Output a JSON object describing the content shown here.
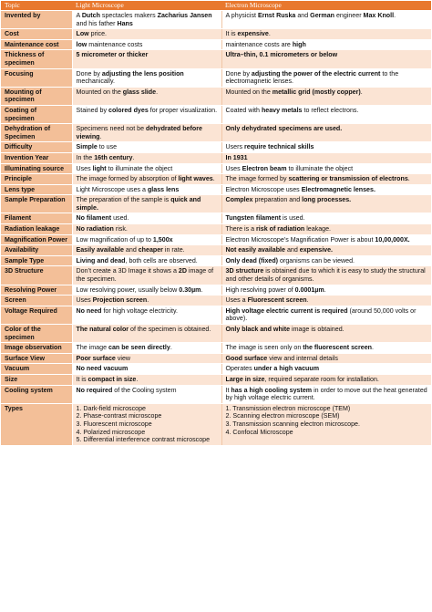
{
  "header": {
    "topic": "Topic",
    "light": "Light Microscope",
    "electron": "Electron Microscope"
  },
  "rows": [
    {
      "topic": "Invented by",
      "light": [
        [
          "A "
        ],
        [
          "Dutch",
          "b"
        ],
        [
          " spectacles makers "
        ],
        [
          "Zacharius Jansen",
          "b"
        ],
        [
          " and his father "
        ],
        [
          "Hans",
          "b"
        ]
      ],
      "electron": [
        [
          "A physicist "
        ],
        [
          "Ernst Ruska",
          "b"
        ],
        [
          " and "
        ],
        [
          "German",
          "b"
        ],
        [
          " engineer "
        ],
        [
          "Max Knoll",
          "b"
        ],
        [
          "."
        ]
      ]
    },
    {
      "topic": "Cost",
      "light": [
        [
          "Low",
          "b"
        ],
        [
          " price."
        ]
      ],
      "electron": [
        [
          "It is "
        ],
        [
          "expensive",
          "b"
        ],
        [
          "."
        ]
      ]
    },
    {
      "topic": "Maintenance cost",
      "light": [
        [
          "low",
          "b"
        ],
        [
          " maintenance costs"
        ]
      ],
      "electron": [
        [
          "maintenance costs are "
        ],
        [
          "high",
          "b"
        ]
      ]
    },
    {
      "topic": "Thickness of specimen",
      "light": [
        [
          "5 micrometer or thicker",
          "b"
        ]
      ],
      "electron": [
        [
          "Ultra–thin, 0.1 micrometers or below",
          "b"
        ]
      ]
    },
    {
      "topic": "Focusing",
      "light": [
        [
          "Done by "
        ],
        [
          "adjusting the lens position",
          "b"
        ],
        [
          " mechanically."
        ]
      ],
      "electron": [
        [
          "Done by "
        ],
        [
          "adjusting the power of the electric current",
          "b"
        ],
        [
          " to the electromagnetic lenses."
        ]
      ]
    },
    {
      "topic": "Mounting of specimen",
      "light": [
        [
          "Mounted on the "
        ],
        [
          "glass slide",
          "b"
        ],
        [
          "."
        ]
      ],
      "electron": [
        [
          "Mounted on the "
        ],
        [
          "metallic grid (mostly copper)",
          "b"
        ],
        [
          "."
        ]
      ]
    },
    {
      "topic": "Coating of specimen",
      "light": [
        [
          "Stained by "
        ],
        [
          "colored dyes",
          "b"
        ],
        [
          " for proper visualization."
        ]
      ],
      "electron": [
        [
          "Coated with "
        ],
        [
          "heavy metals",
          "b"
        ],
        [
          " to reflect electrons."
        ]
      ]
    },
    {
      "topic": "Dehydration of Specimen",
      "light": [
        [
          "Specimens need not be "
        ],
        [
          "dehydrated before viewing",
          "b"
        ],
        [
          "."
        ]
      ],
      "electron": [
        [
          "Only dehydrated specimens are used.",
          "b"
        ]
      ]
    },
    {
      "topic": "Difficulty",
      "light": [
        [
          "Simple",
          "b"
        ],
        [
          " to use"
        ]
      ],
      "electron": [
        [
          "Users "
        ],
        [
          "require technical skills",
          "b"
        ]
      ]
    },
    {
      "topic": "Invention Year",
      "light": [
        [
          "In the "
        ],
        [
          "16th century",
          "b"
        ],
        [
          "."
        ]
      ],
      "electron": [
        [
          "In 1931",
          "b"
        ]
      ]
    },
    {
      "topic": "Illuminating source",
      "light": [
        [
          "Uses "
        ],
        [
          "light",
          "b"
        ],
        [
          " to illuminate the object"
        ]
      ],
      "electron": [
        [
          "Uses "
        ],
        [
          "Electron beam",
          "b"
        ],
        [
          " to illuminate the object"
        ]
      ]
    },
    {
      "topic": "Principle",
      "light": [
        [
          "The image formed by absorption of "
        ],
        [
          "light waves",
          "b"
        ],
        [
          "."
        ]
      ],
      "electron": [
        [
          "The image formed by "
        ],
        [
          "scattering or transmission of electrons",
          "b"
        ],
        [
          "."
        ]
      ]
    },
    {
      "topic": "Lens type",
      "light": [
        [
          "Light Microscope uses a "
        ],
        [
          "glass lens",
          "b"
        ]
      ],
      "electron": [
        [
          "Electron Microscope uses "
        ],
        [
          "Electromagnetic lenses.",
          "b"
        ]
      ]
    },
    {
      "topic": "Sample Preparation",
      "light": [
        [
          "The preparation of the sample is "
        ],
        [
          "quick and simple.",
          "b"
        ]
      ],
      "electron": [
        [
          "Complex",
          "b"
        ],
        [
          " preparation and "
        ],
        [
          "long processes.",
          "b"
        ]
      ]
    },
    {
      "topic": "Filament",
      "light": [
        [
          "No filament",
          "b"
        ],
        [
          " used."
        ]
      ],
      "electron": [
        [
          "Tungsten filament",
          "b"
        ],
        [
          " is used."
        ]
      ]
    },
    {
      "topic": "Radiation leakage",
      "light": [
        [
          "No radiation",
          "b"
        ],
        [
          " risk."
        ]
      ],
      "electron": [
        [
          "There is a "
        ],
        [
          "risk of radiation",
          "b"
        ],
        [
          " leakage."
        ]
      ]
    },
    {
      "topic": "Magnification Power",
      "light": [
        [
          "Low magnification of up to "
        ],
        [
          "1,500x",
          "b"
        ]
      ],
      "electron": [
        [
          "Electron Microscope’s Magnification Power is about "
        ],
        [
          "10,00,000X.",
          "b"
        ]
      ]
    },
    {
      "topic": "Availability",
      "light": [
        [
          "Easily available",
          "b"
        ],
        [
          " and "
        ],
        [
          "cheaper",
          "b"
        ],
        [
          " in rate."
        ]
      ],
      "electron": [
        [
          "Not easily available",
          "b"
        ],
        [
          " and "
        ],
        [
          "expensive.",
          "b"
        ]
      ]
    },
    {
      "topic": "Sample Type",
      "light": [
        [
          "Living and dead",
          "b"
        ],
        [
          ", both cells are observed."
        ]
      ],
      "electron": [
        [
          "Only dead (fixed)",
          "b"
        ],
        [
          " organisms can be viewed."
        ]
      ]
    },
    {
      "topic": "3D Structure",
      "light": [
        [
          "Don’t create a 3D Image it shows a "
        ],
        [
          "2D",
          "b"
        ],
        [
          " image of the specimen."
        ]
      ],
      "electron": [
        [
          "3D structure",
          "b"
        ],
        [
          " is obtained due to which it is easy to study the structural and other details of organisms."
        ]
      ]
    },
    {
      "topic": "Resolving Power",
      "light": [
        [
          "Low resolving power, usually below "
        ],
        [
          "0.30µm",
          "b"
        ],
        [
          "."
        ]
      ],
      "electron": [
        [
          "High resolving power of "
        ],
        [
          "0.0001µm",
          "b"
        ],
        [
          "."
        ]
      ]
    },
    {
      "topic": "Screen",
      "light": [
        [
          "Uses "
        ],
        [
          "Projection screen",
          "b"
        ],
        [
          "."
        ]
      ],
      "electron": [
        [
          "Uses a "
        ],
        [
          "Fluorescent screen",
          "b"
        ],
        [
          "."
        ]
      ]
    },
    {
      "topic": "Voltage Required",
      "light": [
        [
          "No need",
          "b"
        ],
        [
          " for high voltage electricity."
        ]
      ],
      "electron": [
        [
          "High voltage electric current is required",
          "b"
        ],
        [
          " (around 50,000 volts or above)."
        ]
      ]
    },
    {
      "topic": "Color of the specimen",
      "light": [
        [
          "The natural color",
          "b"
        ],
        [
          " of the specimen is obtained."
        ]
      ],
      "electron": [
        [
          "Only black and white",
          "b"
        ],
        [
          " image is obtained."
        ]
      ]
    },
    {
      "topic": "Image observation",
      "light": [
        [
          "The image "
        ],
        [
          "can be seen directly",
          "b"
        ],
        [
          "."
        ]
      ],
      "electron": [
        [
          "The image is seen only on "
        ],
        [
          "the fluorescent screen",
          "b"
        ],
        [
          "."
        ]
      ]
    },
    {
      "topic": "Surface View",
      "light": [
        [
          "Poor surface",
          "b"
        ],
        [
          " view"
        ]
      ],
      "electron": [
        [
          "Good surface",
          "b"
        ],
        [
          " view and internal details"
        ]
      ]
    },
    {
      "topic": "Vacuum",
      "light": [
        [
          "No need vacuum",
          "b"
        ]
      ],
      "electron": [
        [
          "Operates "
        ],
        [
          "under a high vacuum",
          "b"
        ]
      ]
    },
    {
      "topic": "Size",
      "light": [
        [
          "It is "
        ],
        [
          "compact in size",
          "b"
        ],
        [
          "."
        ]
      ],
      "electron": [
        [
          "Large in size",
          "b"
        ],
        [
          ", required separate room for installation."
        ]
      ]
    },
    {
      "topic": "Cooling system",
      "light": [
        [
          "No required",
          "b"
        ],
        [
          " of the Cooling system"
        ]
      ],
      "electron": [
        [
          "It "
        ],
        [
          "has a high cooling system",
          "b"
        ],
        [
          " in order to move out the heat generated by high voltage electric current."
        ]
      ]
    },
    {
      "topic": "Types",
      "light_list": [
        "1. Dark-field microscope",
        "2. Phase-contrast microscope",
        "3. Fluorescent microscope",
        "4. Polarized microscope",
        "5. Differential interference contrast microscope"
      ],
      "electron_list": [
        "1. Transmission electron microscope (TEM)",
        "2. Scanning electron microscope (SEM)",
        "3. Transmission scanning electron microscope.",
        "4. Confocal Microscope"
      ]
    }
  ]
}
